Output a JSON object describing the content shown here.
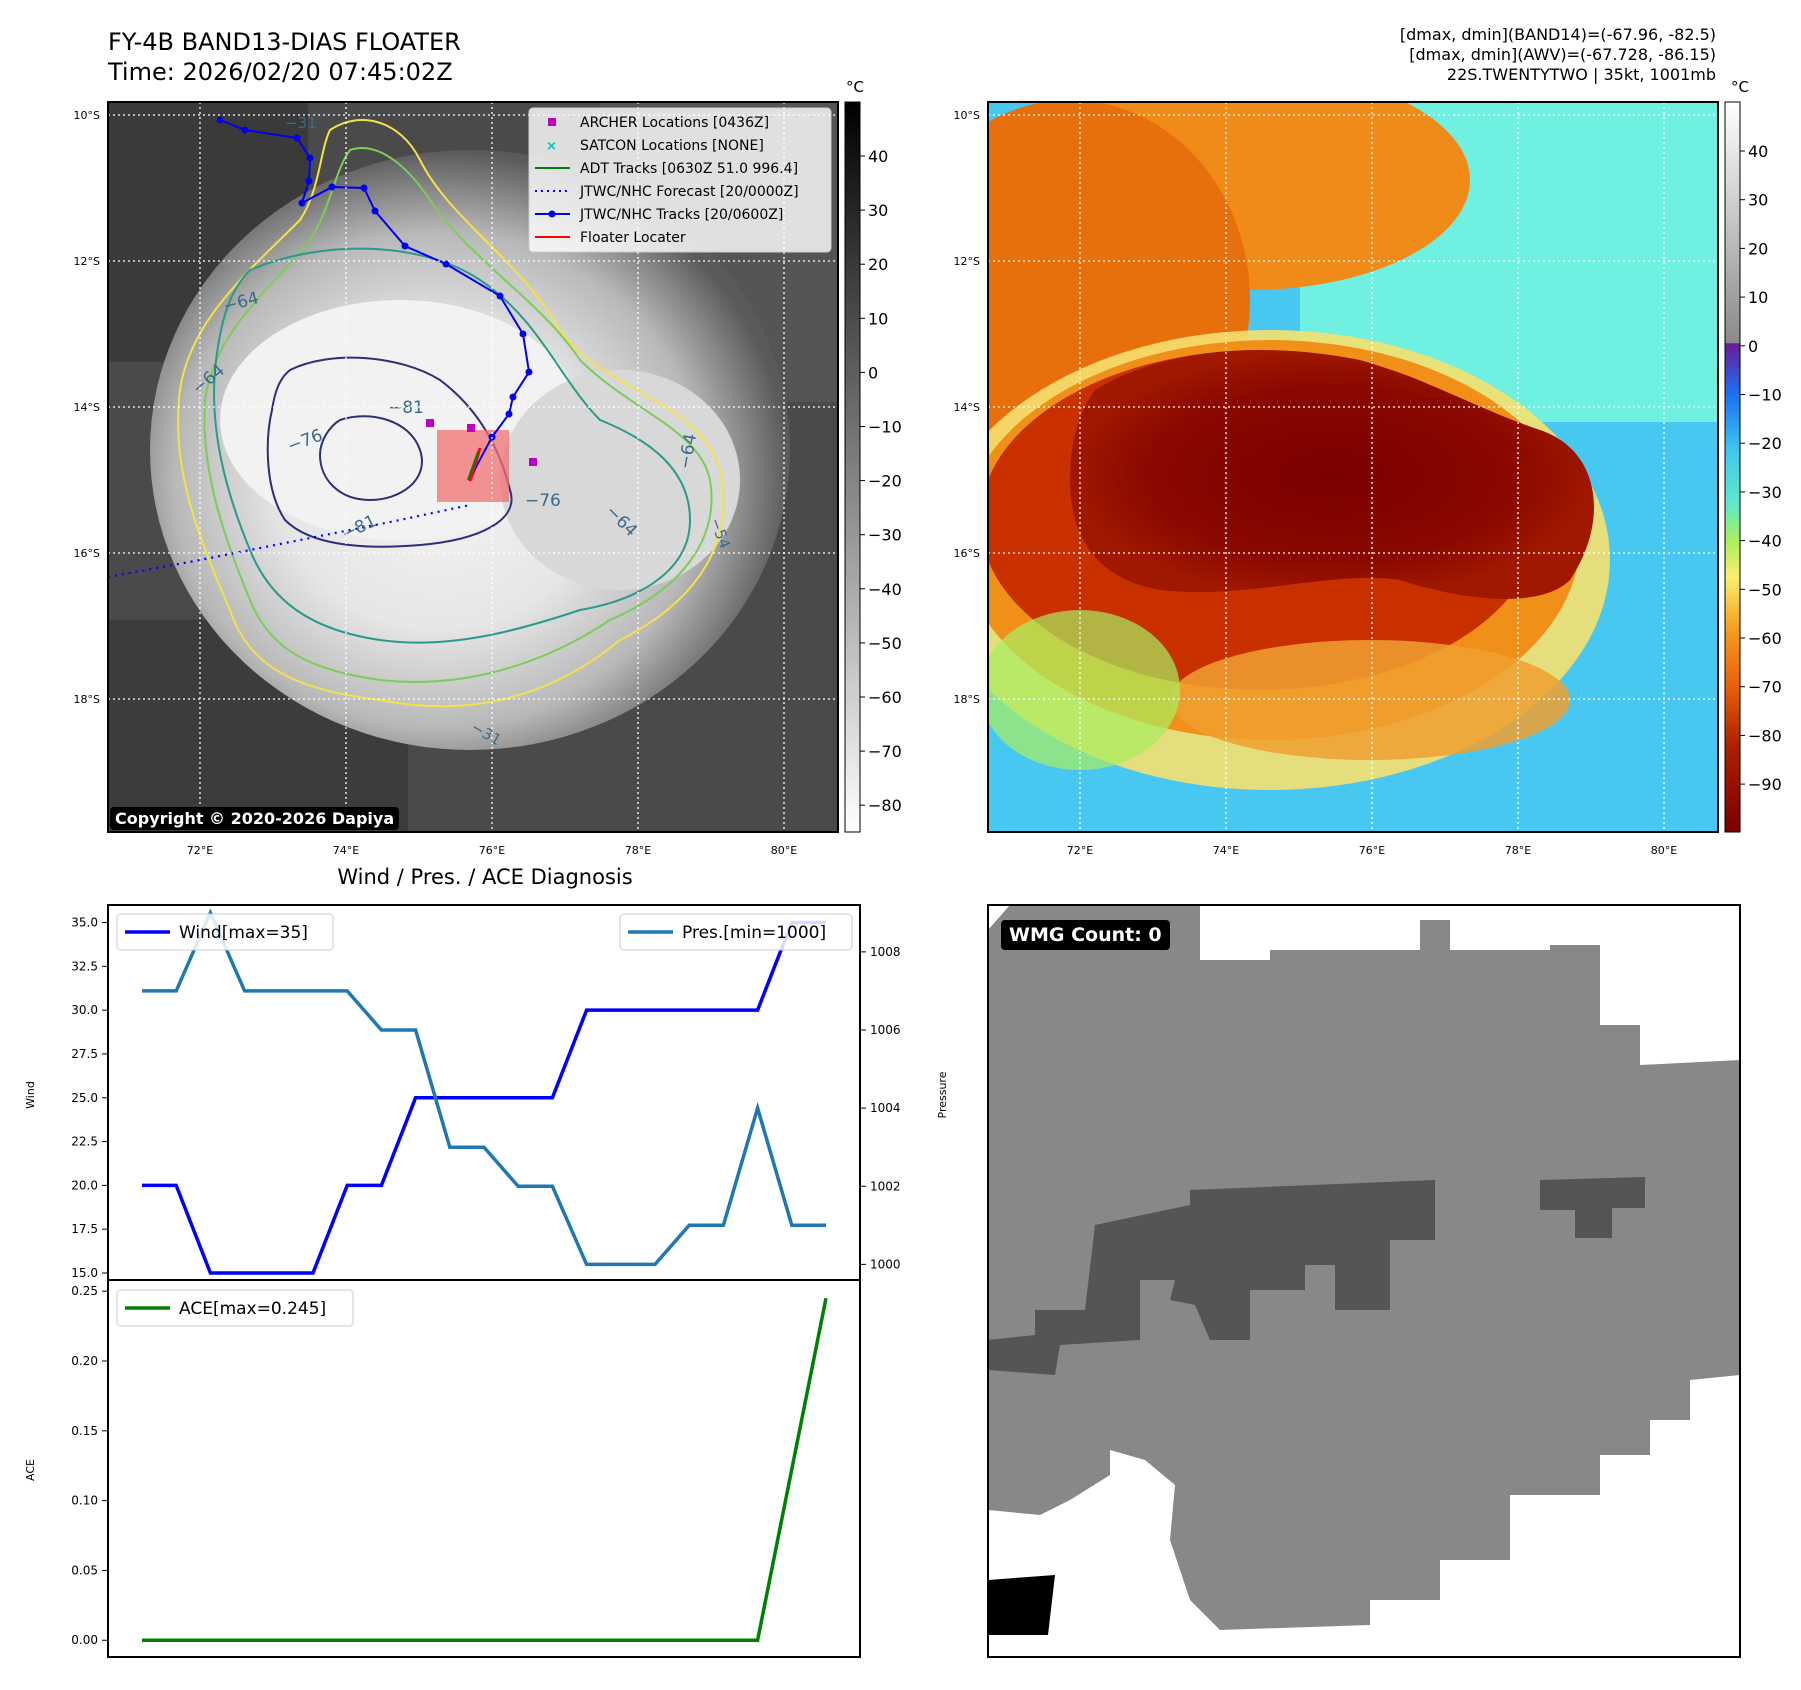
{
  "header": {
    "title": "FY-4B BAND13-DIAS FLOATER",
    "time": "Time: 2026/02/20 07:45:02Z",
    "info_lines": [
      "[dmax, dmin](BAND14)=(-67.96, -82.5)",
      "[dmax, dmin](AWV)=(-67.728, -86.15)",
      "22S.TWENTYTWO | 35kt, 1001mb"
    ]
  },
  "map_axes": {
    "lon_labels": [
      "72°E",
      "74°E",
      "76°E",
      "78°E",
      "80°E"
    ],
    "lat_labels": [
      "10°S",
      "12°S",
      "14°S",
      "16°S",
      "18°S"
    ],
    "copyright": "Copyright © 2020-2026 Dapiya"
  },
  "ir_panel": {
    "colorbar_unit": "°C",
    "colorbar_ticks": [
      "40",
      "30",
      "20",
      "10",
      "0",
      "−10",
      "−20",
      "−30",
      "−40",
      "−50",
      "−60",
      "−70",
      "−80"
    ],
    "contour_labels": [
      "−31",
      "−64",
      "−64",
      "−81",
      "−76",
      "−81",
      "−76",
      "−64",
      "−64",
      "−31",
      "−54"
    ],
    "colors": {
      "contour_yellow": "#f5e04a",
      "contour_lightgreen": "#7ccc5b",
      "contour_teal": "#2a9a8a",
      "contour_navy": "#2d2f7a",
      "archer": "#c000c0",
      "satcon": "#00c0c0",
      "adt": "#008000",
      "forecast": "#0000ff",
      "track": "#0000ee",
      "floater": "#ff0000",
      "floater_box": "#f07070"
    },
    "legend": [
      {
        "label": "ARCHER Locations [0436Z]",
        "icon": "square-marker-icon"
      },
      {
        "label": "SATCON Locations [NONE]",
        "icon": "x-marker-icon"
      },
      {
        "label": "ADT Tracks [0630Z 51.0 996.4]",
        "icon": "solid-line-icon"
      },
      {
        "label": "JTWC/NHC Forecast [20/0000Z]",
        "icon": "dotted-line-icon"
      },
      {
        "label": "JTWC/NHC Tracks [20/0600Z]",
        "icon": "line-dot-icon"
      },
      {
        "label": "Floater Locater",
        "icon": "solid-line-icon"
      }
    ]
  },
  "wv_panel": {
    "colorbar_unit": "°C",
    "colorbar_ticks": [
      "40",
      "30",
      "20",
      "10",
      "0",
      "−10",
      "−20",
      "−30",
      "−40",
      "−50",
      "−60",
      "−70",
      "−80",
      "−90"
    ]
  },
  "diagnosis_panel": {
    "title": "Wind / Pres. / ACE Diagnosis",
    "wind_ylabel": "Wind",
    "pres_ylabel": "Pressure",
    "ace_ylabel": "ACE"
  },
  "wmg_panel": {
    "count_label": "WMG Count: 0"
  },
  "chart_data": [
    {
      "type": "line",
      "x": [
        0,
        1,
        2,
        3,
        4,
        5,
        6,
        7,
        8,
        9,
        10,
        11,
        12,
        13,
        14,
        15,
        16,
        17,
        18,
        19,
        20
      ],
      "series": [
        {
          "name": "Wind[max=35]",
          "axis": "left",
          "color": "#0000ff",
          "values": [
            20,
            20,
            15,
            15,
            15,
            15,
            20,
            20,
            25,
            25,
            25,
            25,
            25,
            30,
            30,
            30,
            30,
            30,
            30,
            35,
            35
          ]
        },
        {
          "name": "Pres.[min=1000]",
          "axis": "right",
          "color": "#1f77b4",
          "values": [
            1007,
            1007,
            1009,
            1007,
            1007,
            1007,
            1007,
            1006,
            1006,
            1003,
            1003,
            1002,
            1002,
            1000,
            1000,
            1000,
            1001,
            1001,
            1004,
            1001,
            1001
          ]
        }
      ],
      "ylabel": "Wind",
      "ylabel_right": "Pressure",
      "ylim": [
        14.6,
        36.0
      ],
      "ylim_right": [
        999.6,
        1009.2
      ],
      "yticks": [
        "35.0",
        "32.5",
        "30.0",
        "27.5",
        "25.0",
        "22.5",
        "20.0",
        "17.5",
        "15.0"
      ],
      "yticks_right": [
        "1008",
        "1006",
        "1004",
        "1002",
        "1000"
      ],
      "legend": [
        "upper-left",
        "upper-right"
      ]
    },
    {
      "type": "line",
      "x": [
        0,
        1,
        2,
        3,
        4,
        5,
        6,
        7,
        8,
        9,
        10,
        11,
        12,
        13,
        14,
        15,
        16,
        17,
        18,
        19,
        20
      ],
      "series": [
        {
          "name": "ACE[max=0.245]",
          "color": "#008000",
          "values": [
            0,
            0,
            0,
            0,
            0,
            0,
            0,
            0,
            0,
            0,
            0,
            0,
            0,
            0,
            0,
            0,
            0,
            0,
            0,
            0.1225,
            0.245
          ]
        }
      ],
      "ylabel": "ACE",
      "ylim": [
        -0.012,
        0.258
      ],
      "yticks": [
        "0.25",
        "0.20",
        "0.15",
        "0.10",
        "0.05",
        "0.00"
      ],
      "legend": "upper-left"
    }
  ]
}
